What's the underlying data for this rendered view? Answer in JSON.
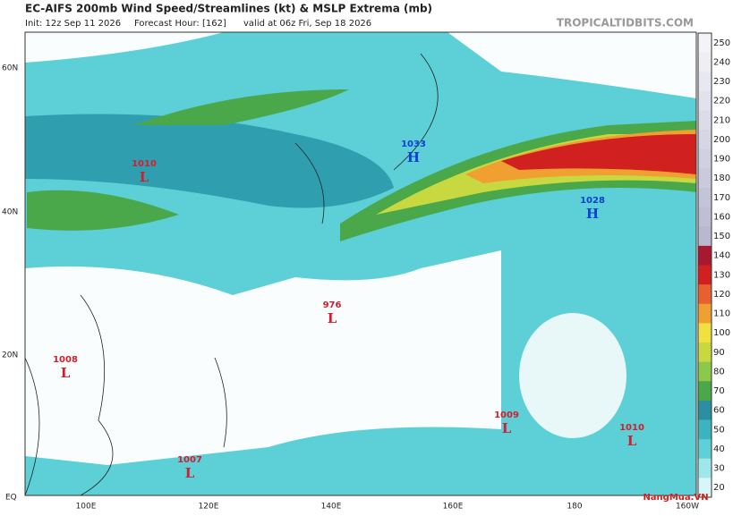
{
  "header": {
    "title": "EC-AIFS 200mb Wind Speed/Streamlines (kt) & MSLP Extrema (mb)",
    "init": "Init: 12z Sep 11 2026",
    "forecast_hour": "Forecast Hour: [162]",
    "valid": "valid at 06z Fri, Sep 18 2026",
    "source": "TROPICALTIDBITS.COM"
  },
  "map": {
    "lat_labels": [
      "60N",
      "40N",
      "20N",
      "EQ"
    ],
    "lon_labels": [
      "100E",
      "120E",
      "140E",
      "160E",
      "180",
      "160W"
    ],
    "centers": [
      {
        "value": "1010",
        "letter": "L"
      },
      {
        "value": "1033",
        "letter": "H"
      },
      {
        "value": "1028",
        "letter": "H"
      },
      {
        "value": "976",
        "letter": "L"
      },
      {
        "value": "1008",
        "letter": "L"
      },
      {
        "value": "1009",
        "letter": "L"
      },
      {
        "value": "1010",
        "letter": "L"
      },
      {
        "value": "1007",
        "letter": "L"
      }
    ]
  },
  "colorbar": {
    "levels": [
      250,
      240,
      230,
      220,
      210,
      200,
      190,
      180,
      170,
      160,
      150,
      140,
      130,
      120,
      110,
      100,
      90,
      80,
      70,
      60,
      50,
      40,
      30,
      20
    ],
    "colors": [
      "#f4f4f8",
      "#eeeef4",
      "#e8e8f0",
      "#e2e2ec",
      "#dcdce8",
      "#d6d6e4",
      "#d0d0e0",
      "#cacadc",
      "#c4c4d8",
      "#bebed4",
      "#b8b8d0",
      "#a81830",
      "#d02020",
      "#e86030",
      "#f0a030",
      "#f0e040",
      "#c8d840",
      "#8cc84a",
      "#4aa84a",
      "#2a8fa0",
      "#3cb4c0",
      "#5fd0d8",
      "#9ee8ec",
      "#d8f6f8"
    ]
  },
  "logo": "NangMua.VN"
}
